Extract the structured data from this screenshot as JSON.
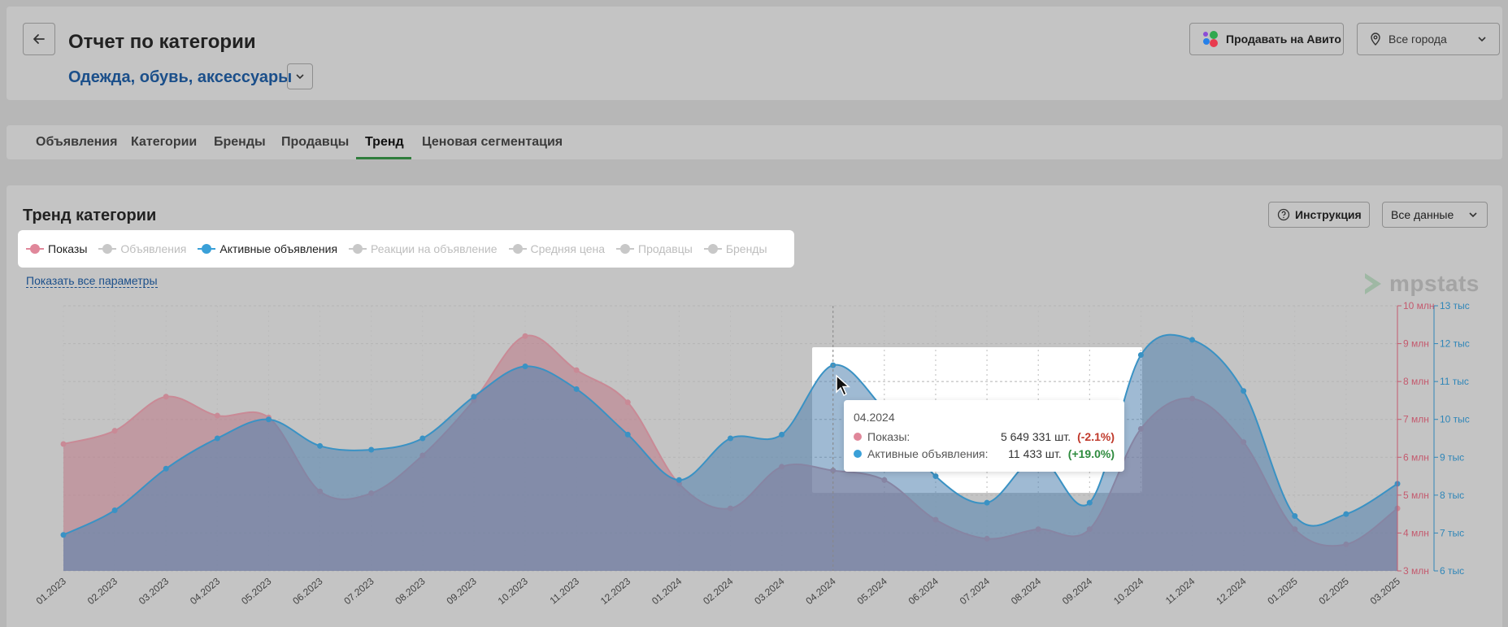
{
  "header": {
    "title": "Отчет по категории",
    "category": "Одежда, обувь, аксессуары",
    "sell_button": "Продавать на Авито",
    "city_select": "Все города"
  },
  "tabs": [
    {
      "label": "Объявления"
    },
    {
      "label": "Категории"
    },
    {
      "label": "Бренды"
    },
    {
      "label": "Продавцы"
    },
    {
      "label": "Тренд",
      "active": true
    },
    {
      "label": "Ценовая сегментация"
    }
  ],
  "section": {
    "title": "Тренд категории",
    "instruction_button": "Инструкция",
    "data_select": "Все данные",
    "show_all": "Показать все параметры",
    "watermark": "mpstats"
  },
  "legend": [
    {
      "label": "Показы",
      "active": true,
      "color": "#e0879a"
    },
    {
      "label": "Объявления",
      "active": false,
      "color": "#c8c8c8"
    },
    {
      "label": "Активные объявления",
      "active": true,
      "color": "#3aa0d8"
    },
    {
      "label": "Реакции на объявление",
      "active": false,
      "color": "#c8c8c8"
    },
    {
      "label": "Средняя цена",
      "active": false,
      "color": "#c8c8c8"
    },
    {
      "label": "Продавцы",
      "active": false,
      "color": "#c8c8c8"
    },
    {
      "label": "Бренды",
      "active": false,
      "color": "#c8c8c8"
    }
  ],
  "tooltip": {
    "date": "04.2024",
    "rows": [
      {
        "name": "Показы:",
        "value": "5 649 331 шт.",
        "change": "(-2.1%)",
        "change_color": "#c0392b",
        "dot": "#e0879a"
      },
      {
        "name": "Активные объявления:",
        "value": "11 433 шт.",
        "change": "(+19.0%)",
        "change_color": "#2e8b3e",
        "dot": "#3aa0d8"
      }
    ]
  },
  "chart_data": {
    "type": "area",
    "categories": [
      "01.2023",
      "02.2023",
      "03.2023",
      "04.2023",
      "05.2023",
      "06.2023",
      "07.2023",
      "08.2023",
      "09.2023",
      "10.2023",
      "11.2023",
      "12.2023",
      "01.2024",
      "02.2024",
      "03.2024",
      "04.2024",
      "05.2024",
      "06.2024",
      "07.2024",
      "08.2024",
      "09.2024",
      "10.2024",
      "11.2024",
      "12.2024",
      "01.2025",
      "02.2025",
      "03.2025"
    ],
    "series": [
      {
        "name": "Показы",
        "axis": "left",
        "color": "#c98a96",
        "values": [
          6.35,
          6.7,
          7.6,
          7.1,
          7.05,
          5.1,
          5.05,
          6.05,
          7.5,
          9.2,
          8.3,
          7.45,
          5.3,
          4.65,
          5.75,
          5.65,
          5.4,
          4.35,
          3.85,
          4.1,
          4.1,
          6.75,
          7.55,
          6.4,
          4.1,
          3.7,
          4.65
        ]
      },
      {
        "name": "Активные объявления",
        "axis": "right",
        "color": "#3a92c4",
        "values": [
          6.95,
          7.6,
          8.7,
          9.5,
          10.0,
          9.3,
          9.2,
          9.5,
          10.6,
          11.4,
          10.8,
          9.6,
          8.4,
          9.5,
          9.6,
          11.43,
          10.25,
          8.5,
          7.8,
          9.0,
          7.8,
          11.7,
          12.1,
          10.75,
          7.45,
          7.5,
          8.3
        ]
      }
    ],
    "y_left": {
      "ticks": [
        "3 млн",
        "4 млн",
        "5 млн",
        "6 млн",
        "7 млн",
        "8 млн",
        "9 млн",
        "10 млн"
      ],
      "range": [
        3,
        10
      ],
      "color": "#c45a6e"
    },
    "y_right": {
      "ticks": [
        "6 тыс",
        "7 тыс",
        "8 тыс",
        "9 тыс",
        "10 тыс",
        "11 тыс",
        "12 тыс",
        "13 тыс"
      ],
      "range": [
        6,
        13
      ],
      "color": "#2f86b8"
    },
    "highlighted_category": "04.2024",
    "grid": true
  }
}
